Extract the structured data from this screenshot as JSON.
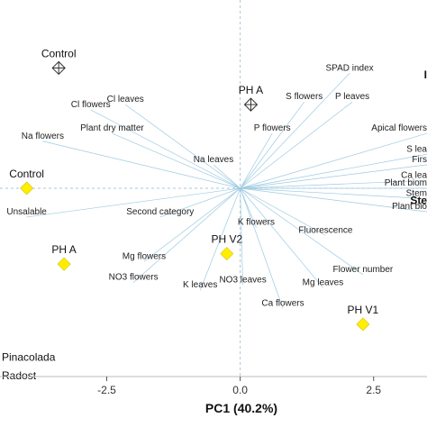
{
  "chart_data": {
    "type": "scatter",
    "subtype": "pca-biplot",
    "xlabel": "PC1 (40.2%)",
    "ylabel": "",
    "xlim": [
      -4.5,
      3.5
    ],
    "ylim": [
      -3.6,
      3.6
    ],
    "x_ticks": [
      -2.5,
      0.0,
      2.5
    ],
    "x_tick_labels": [
      "-2.5",
      "0.0",
      "2.5"
    ],
    "zero_lines": true,
    "colors": {
      "vector": "#9ecae1",
      "yellow_marker": "#ffee00",
      "zero_line": "#a9c7da",
      "text": "#222222"
    },
    "scores": [
      {
        "label": "Control",
        "marker": "diamond-yellow",
        "x": -4.0,
        "y": 0.0
      },
      {
        "label": "PH A",
        "marker": "diamond-yellow",
        "x": -3.3,
        "y": -1.45
      },
      {
        "label": "PH V2",
        "marker": "diamond-yellow",
        "x": -0.25,
        "y": -1.25
      },
      {
        "label": "PH V1",
        "marker": "diamond-yellow",
        "x": 2.3,
        "y": -2.6
      },
      {
        "label": "Control",
        "marker": "diamond-cross",
        "x": -3.4,
        "y": 2.3
      },
      {
        "label": "PH A",
        "marker": "diamond-cross",
        "x": 0.2,
        "y": 1.6
      }
    ],
    "loadings": [
      {
        "label": "Cl flowers",
        "x": -2.8,
        "y": 1.5
      },
      {
        "label": "Cl leaves",
        "x": -2.15,
        "y": 1.6
      },
      {
        "label": "Plant dry matter",
        "x": -2.4,
        "y": 1.05
      },
      {
        "label": "Na flowers",
        "x": -3.7,
        "y": 0.9
      },
      {
        "label": "Na leaves",
        "x": -0.5,
        "y": 0.45
      },
      {
        "label": "Unsalable",
        "x": -4.0,
        "y": -0.55
      },
      {
        "label": "Second category",
        "x": -1.5,
        "y": -0.55
      },
      {
        "label": "SPAD index",
        "x": 2.05,
        "y": 2.2
      },
      {
        "label": "S flowers",
        "x": 1.2,
        "y": 1.65
      },
      {
        "label": "P leaves",
        "x": 2.1,
        "y": 1.65
      },
      {
        "label": "P flowers",
        "x": 0.6,
        "y": 1.05
      },
      {
        "label": "Apical flowers",
        "x": 3.5,
        "y": 1.05
      },
      {
        "label": "S lea",
        "x": 3.5,
        "y": 0.65
      },
      {
        "label": "Firs",
        "x": 3.5,
        "y": 0.45
      },
      {
        "label": "Ca lea",
        "x": 3.5,
        "y": 0.15
      },
      {
        "label": "Plant biom",
        "x": 3.5,
        "y": 0.0
      },
      {
        "label": "Stem",
        "x": 3.5,
        "y": -0.2
      },
      {
        "label": "Plant bio",
        "x": 3.5,
        "y": -0.45
      },
      {
        "label": "K flowers",
        "x": 0.3,
        "y": -0.75
      },
      {
        "label": "Fluorescence",
        "x": 1.6,
        "y": -0.9
      },
      {
        "label": "Mg flowers",
        "x": -1.8,
        "y": -1.4
      },
      {
        "label": "NO3 flowers",
        "x": -2.0,
        "y": -1.8
      },
      {
        "label": "K leaves",
        "x": -0.75,
        "y": -1.95
      },
      {
        "label": "NO3 leaves",
        "x": 0.05,
        "y": -1.85
      },
      {
        "label": "Flower number",
        "x": 2.3,
        "y": -1.65
      },
      {
        "label": "Mg leaves",
        "x": 1.55,
        "y": -1.9
      },
      {
        "label": "Ca flowers",
        "x": 0.8,
        "y": -2.3
      }
    ],
    "extra_labels": [
      {
        "text": "Pinacolada",
        "x": -4.4,
        "y": -3.3
      },
      {
        "text": "Radost",
        "x": -4.4,
        "y": -3.65
      }
    ],
    "edge_glyphs": [
      {
        "text": "I",
        "x": 3.6,
        "y": 2.1
      },
      {
        "text": "Ste",
        "x": 3.55,
        "y": -0.3
      }
    ]
  }
}
